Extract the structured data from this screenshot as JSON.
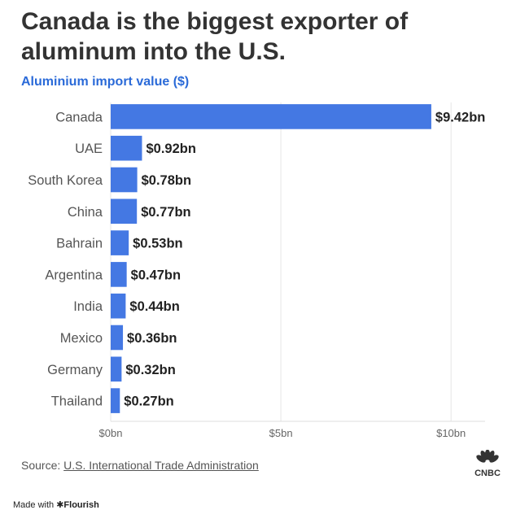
{
  "header": {
    "title": "Canada is the biggest exporter of aluminum into the U.S.",
    "subtitle": "Aluminium import value ($)"
  },
  "chart_data": {
    "type": "bar",
    "orientation": "horizontal",
    "categories": [
      "Canada",
      "UAE",
      "South Korea",
      "China",
      "Bahrain",
      "Argentina",
      "India",
      "Mexico",
      "Germany",
      "Thailand"
    ],
    "values": [
      9.42,
      0.92,
      0.78,
      0.77,
      0.53,
      0.47,
      0.44,
      0.36,
      0.32,
      0.27
    ],
    "value_labels": [
      "$9.42bn",
      "$0.92bn",
      "$0.78bn",
      "$0.77bn",
      "$0.53bn",
      "$0.47bn",
      "$0.44bn",
      "$0.36bn",
      "$0.32bn",
      "$0.27bn"
    ],
    "title": "Canada is the biggest exporter of aluminum into the U.S.",
    "subtitle": "Aluminium import value ($)",
    "xlim": [
      0,
      11
    ],
    "xticks": [
      0,
      5,
      10
    ],
    "xtick_labels": [
      "$0bn",
      "$5bn",
      "$10bn"
    ],
    "grid": true,
    "bar_color": "#4478e3"
  },
  "footer": {
    "source_prefix": "Source: ",
    "source_link": "U.S. International Trade Administration",
    "logo_text": "CNBC",
    "made_with_prefix": "Made with ",
    "made_with_brand": "✱Flourish"
  },
  "colors": {
    "title": "#333333",
    "subtitle": "#2a6ad8",
    "bar": "#4478e3",
    "grid": "#e6e6e6"
  }
}
